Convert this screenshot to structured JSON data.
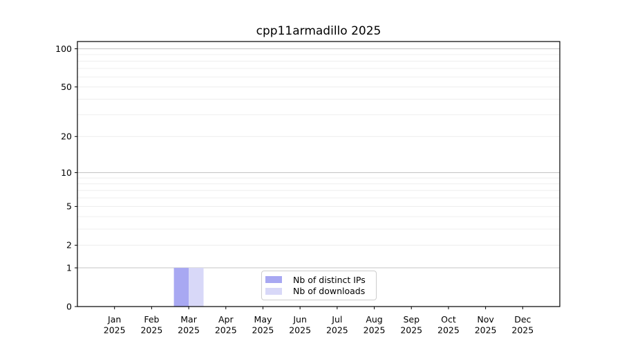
{
  "chart_data": {
    "type": "bar",
    "title": "cpp11armadillo 2025",
    "x_categories": [
      "Jan",
      "Feb",
      "Mar",
      "Apr",
      "May",
      "Jun",
      "Jul",
      "Aug",
      "Sep",
      "Oct",
      "Nov",
      "Dec"
    ],
    "x_year": "2025",
    "y_ticks": [
      0,
      1,
      2,
      5,
      10,
      20,
      50,
      100
    ],
    "y_scale": "log1p",
    "ylim": [
      0,
      115
    ],
    "grid": {
      "major": [
        1,
        10,
        100
      ],
      "minor": [
        2,
        3,
        4,
        5,
        6,
        7,
        8,
        9,
        20,
        30,
        40,
        50,
        60,
        70,
        80,
        90
      ],
      "major_color": "#c4c4c4",
      "minor_color": "#ececec"
    },
    "series": [
      {
        "name": "Nb of distinct IPs",
        "color": "#a8a8f2",
        "values": [
          0,
          0,
          1,
          0,
          0,
          0,
          0,
          0,
          0,
          0,
          0,
          0
        ]
      },
      {
        "name": "Nb of downloads",
        "color": "#d8d8f8",
        "values": [
          0,
          0,
          1,
          0,
          0,
          0,
          0,
          0,
          0,
          0,
          0,
          0
        ]
      }
    ],
    "legend_position": "bottom-center"
  }
}
